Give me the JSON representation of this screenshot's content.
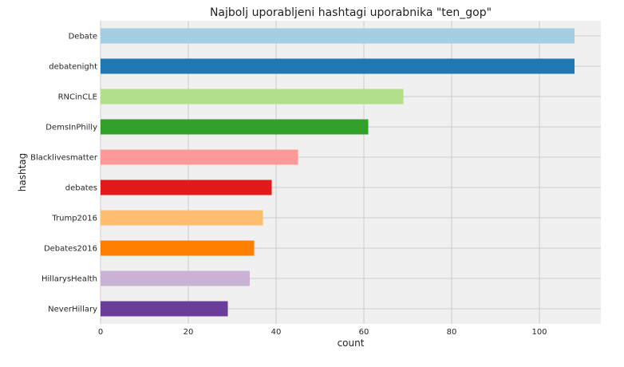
{
  "chart_data": {
    "type": "bar",
    "orientation": "horizontal",
    "title": "Najbolj uporabljeni hashtagi uporabnika \"ten_gop\"",
    "xlabel": "count",
    "ylabel": "hashtag",
    "categories": [
      "Debate",
      "debatenight",
      "RNCinCLE",
      "DemsInPhilly",
      "Blacklivesmatter",
      "debates",
      "Trump2016",
      "Debates2016",
      "HillarysHealth",
      "NeverHillary"
    ],
    "values": [
      108,
      108,
      69,
      61,
      45,
      39,
      37,
      35,
      34,
      29
    ],
    "colors": [
      "#a6cee3",
      "#1f78b4",
      "#b2df8a",
      "#33a02c",
      "#fb9a99",
      "#e31a1c",
      "#fdbf6f",
      "#ff7f00",
      "#cab2d6",
      "#6a3d9a"
    ],
    "xlim": [
      0,
      114
    ],
    "xticks": [
      0,
      20,
      40,
      60,
      80,
      100
    ],
    "grid": true,
    "background": "#f0f0f0",
    "grid_color": "#cbcbcb"
  }
}
